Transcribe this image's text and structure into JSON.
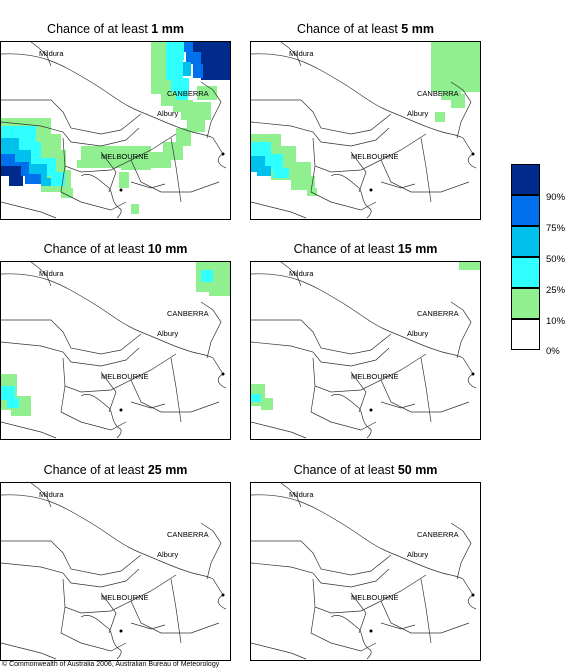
{
  "panels": [
    {
      "prefix": "Chance of at least ",
      "amount": "1 mm"
    },
    {
      "prefix": "Chance of at least ",
      "amount": "5 mm"
    },
    {
      "prefix": "Chance of at least ",
      "amount": "10 mm"
    },
    {
      "prefix": "Chance of at least ",
      "amount": "15 mm"
    },
    {
      "prefix": "Chance of at least ",
      "amount": "25 mm"
    },
    {
      "prefix": "Chance of at least ",
      "amount": "50 mm"
    }
  ],
  "places": {
    "mildura": "Mildura",
    "canberra": "CANBERRA",
    "albury": "Albury",
    "melbourne": "MELBOURNE"
  },
  "legend": {
    "labels": [
      "90%",
      "75%",
      "50%",
      "25%",
      "10%",
      "0%"
    ],
    "colors": [
      "#002a8c",
      "#0070ec",
      "#00c0ee",
      "#30ffff",
      "#90f090",
      "#ffffff"
    ]
  },
  "footer": "© Commonwealth of Australia 2006, Australian Bureau of Meteorology"
}
